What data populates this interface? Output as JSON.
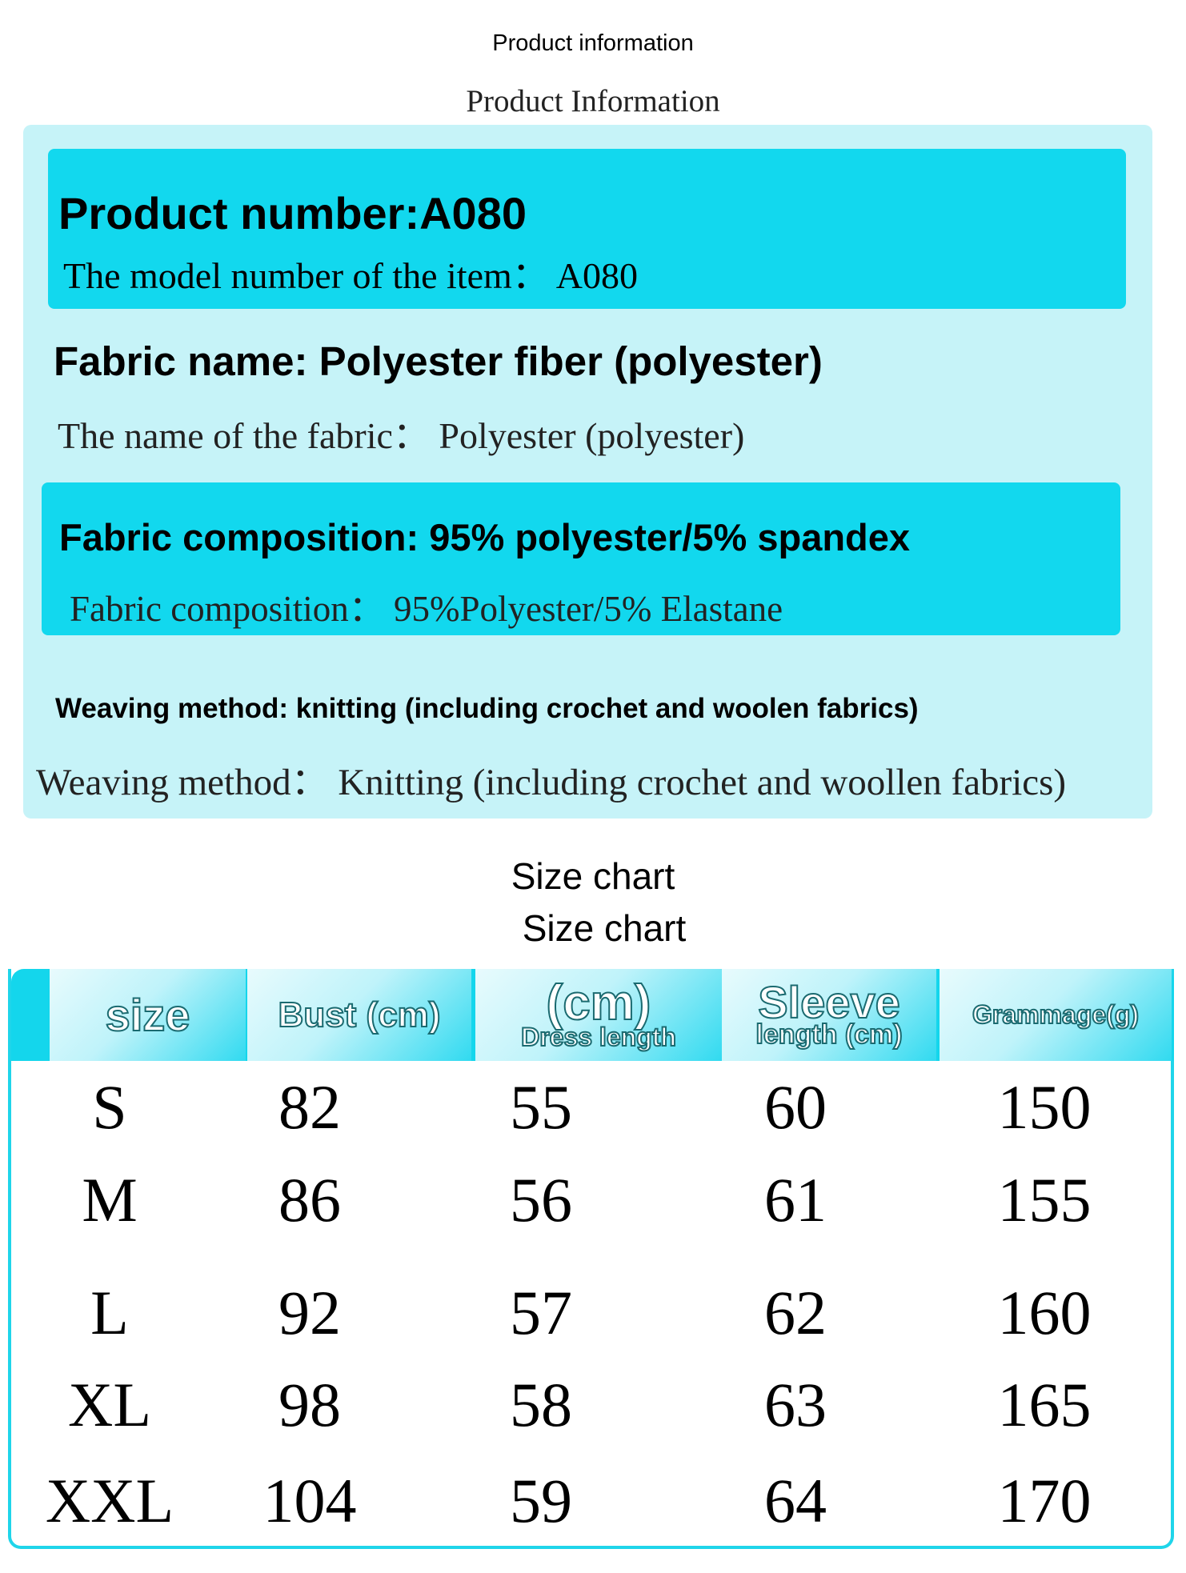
{
  "header": {
    "title": "Product information",
    "subtitle": "Product Information"
  },
  "info": {
    "product_number": {
      "title": "Product number:A080",
      "subtitle": "The model number of the item：  A080"
    },
    "fabric_name": {
      "title": "Fabric name: Polyester fiber (polyester)",
      "subtitle": "The name of the fabric：  Polyester (polyester)"
    },
    "composition": {
      "title": "Fabric composition: 95% polyester/5% spandex",
      "subtitle": "Fabric composition：  95%Polyester/5% Elastane"
    },
    "weaving": {
      "title": "Weaving method: knitting (including crochet and woolen fabrics)",
      "subtitle": "Weaving method：  Knitting (including crochet and woollen fabrics)"
    }
  },
  "size_chart": {
    "title": "Size chart",
    "subtitle": "Size chart",
    "headers": [
      {
        "main": "size",
        "sub": ""
      },
      {
        "main": "Bust (cm)",
        "sub": ""
      },
      {
        "main": "(cm)",
        "sub": "Dress length"
      },
      {
        "main": "Sleeve",
        "sub": "length (cm)"
      },
      {
        "main": "Grammage(g)",
        "sub": ""
      }
    ],
    "rows": [
      [
        "S",
        "82",
        "55",
        "60",
        "150"
      ],
      [
        "M",
        "86",
        "56",
        "61",
        "155"
      ],
      [
        "L",
        "92",
        "57",
        "62",
        "160"
      ],
      [
        "XL",
        "98",
        "58",
        "63",
        "165"
      ],
      [
        "XXL",
        "104",
        "59",
        "64",
        "170"
      ]
    ]
  },
  "colors": {
    "accent": "#12d8ee",
    "panel": "#c6f3f8"
  }
}
